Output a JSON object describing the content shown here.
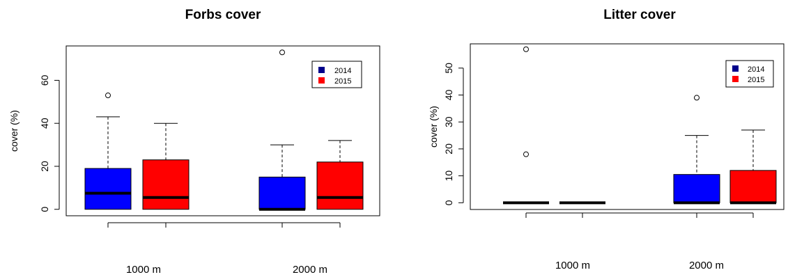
{
  "colors": {
    "series_2014": "#0000ff",
    "series_2015": "#ff0000",
    "legend_2014": "#00008b"
  },
  "chart_data": [
    {
      "type": "boxplot",
      "title": "Forbs cover",
      "xlabel": "",
      "ylabel": "cover (%)",
      "ylim": [
        -3,
        76
      ],
      "yticks": [
        0,
        20,
        40,
        60
      ],
      "categories": [
        "1000 m",
        "2000 m"
      ],
      "legend": {
        "position": "top-right",
        "entries": [
          "2014",
          "2015"
        ]
      },
      "series": [
        {
          "name": "2014",
          "boxes": [
            {
              "category": "1000 m",
              "min": 0,
              "q1": 0,
              "median": 7.5,
              "q3": 19,
              "max": 43,
              "outliers": [
                53
              ]
            },
            {
              "category": "2000 m",
              "min": 0,
              "q1": 0,
              "median": 0,
              "q3": 15,
              "max": 30,
              "outliers": [
                73
              ]
            }
          ]
        },
        {
          "name": "2015",
          "boxes": [
            {
              "category": "1000 m",
              "min": 0,
              "q1": 0,
              "median": 5.5,
              "q3": 23,
              "max": 40,
              "outliers": []
            },
            {
              "category": "2000 m",
              "min": 0,
              "q1": 0,
              "median": 5.5,
              "q3": 22,
              "max": 32,
              "outliers": []
            }
          ]
        }
      ]
    },
    {
      "type": "boxplot",
      "title": "Litter cover",
      "xlabel": "",
      "ylabel": "cover (%)",
      "ylim": [
        -2.5,
        59
      ],
      "yticks": [
        0,
        10,
        20,
        30,
        40,
        50
      ],
      "categories": [
        "1000 m",
        "2000 m"
      ],
      "legend": {
        "position": "top-right",
        "entries": [
          "2014",
          "2015"
        ]
      },
      "series": [
        {
          "name": "2014",
          "boxes": [
            {
              "category": "1000 m",
              "min": 0,
              "q1": 0,
              "median": 0,
              "q3": 0,
              "max": 0,
              "outliers": [
                18,
                57
              ]
            },
            {
              "category": "2000 m",
              "min": 0,
              "q1": 0,
              "median": 0,
              "q3": 10.5,
              "max": 25,
              "outliers": [
                39
              ]
            }
          ]
        },
        {
          "name": "2015",
          "boxes": [
            {
              "category": "1000 m",
              "min": 0,
              "q1": 0,
              "median": 0,
              "q3": 0,
              "max": 0,
              "outliers": []
            },
            {
              "category": "2000 m",
              "min": 0,
              "q1": 0,
              "median": 0,
              "q3": 12,
              "max": 27,
              "outliers": []
            }
          ]
        }
      ]
    }
  ]
}
